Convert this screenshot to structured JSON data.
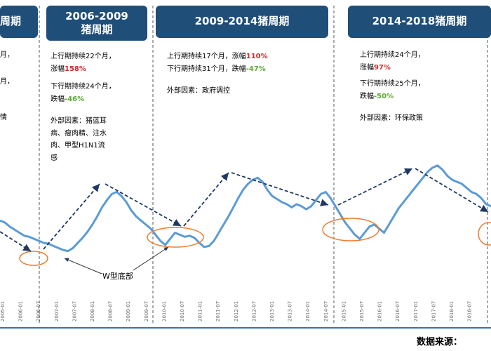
{
  "cycles": [
    {
      "title_lines": [
        "周期"
      ],
      "info": [
        "月，",
        "月，",
        "情"
      ]
    },
    {
      "title_lines": [
        "2006-2009",
        "猪周期"
      ],
      "info": [
        {
          "pre": "上行期持续22个月，",
          "val": ""
        },
        {
          "pre": "涨幅",
          "val": "158%",
          "cls": "up"
        },
        {
          "pre": "下行期持续24个月，",
          "val": ""
        },
        {
          "pre": "跌幅",
          "val": "-46%",
          "cls": "down"
        },
        {
          "pre": "外部因素：猪蓝耳",
          "val": ""
        },
        {
          "pre": "病、瘦肉精、注水",
          "val": ""
        },
        {
          "pre": "肉、甲型H1N1流",
          "val": ""
        },
        {
          "pre": "感",
          "val": ""
        }
      ]
    },
    {
      "title_lines": [
        "2009-2014猪周期"
      ],
      "info": [
        {
          "pre": "上行期持续17个月，涨幅",
          "val": "110%",
          "cls": "up"
        },
        {
          "pre": "下行期持续31个月，跌幅",
          "val": "-47%",
          "cls": "down"
        },
        {
          "pre": "外部因素：政府调控",
          "val": ""
        }
      ]
    },
    {
      "title_lines": [
        "2014-2018猪周期"
      ],
      "info": [
        {
          "pre": "上行期持续24个月，",
          "val": ""
        },
        {
          "pre": "涨幅",
          "val": "97%",
          "cls": "up"
        },
        {
          "pre": "下行期持续25个月，",
          "val": ""
        },
        {
          "pre": "跌幅",
          "val": "-50%",
          "cls": "down"
        },
        {
          "pre": "外部因素：环保政策",
          "val": ""
        }
      ]
    }
  ],
  "annotation": "W型底部",
  "source_label": "数据来源：",
  "colors": {
    "header_bg": "#1f4e79",
    "line": "#5b9bd5",
    "trend_arrow": "#1f3864",
    "circle": "#ed7d31",
    "up": "#d42a2a",
    "down": "#5aa832",
    "divider": "#555555"
  },
  "chart_data": {
    "type": "line",
    "title": "",
    "xlabel": "",
    "ylabel": "",
    "x_tick_labels": [
      "2005-01",
      "2006-01",
      "2006-07",
      "2007-01",
      "2007-07",
      "2008-01",
      "2008-07",
      "2009-01",
      "2009-07",
      "2010-01",
      "2010-07",
      "2011-01",
      "2011-07",
      "2012-01",
      "2012-07",
      "2013-01",
      "2013-07",
      "2014-01",
      "2014-07",
      "2015-01",
      "2015-07",
      "2016-01",
      "2016-07",
      "2017-01",
      "2017-07",
      "2018-01",
      "2018-07"
    ],
    "series": [
      {
        "name": "",
        "values": [
          0.42,
          0.4,
          0.36,
          0.33,
          0.3,
          0.27,
          0.26,
          0.24,
          0.22,
          0.2,
          0.19,
          0.17,
          0.15,
          0.13,
          0.12,
          0.15,
          0.2,
          0.25,
          0.31,
          0.38,
          0.46,
          0.55,
          0.62,
          0.68,
          0.7,
          0.66,
          0.6,
          0.52,
          0.46,
          0.42,
          0.38,
          0.34,
          0.28,
          0.22,
          0.18,
          0.24,
          0.3,
          0.28,
          0.26,
          0.27,
          0.25,
          0.2,
          0.16,
          0.17,
          0.22,
          0.3,
          0.38,
          0.46,
          0.55,
          0.64,
          0.72,
          0.78,
          0.82,
          0.84,
          0.8,
          0.72,
          0.66,
          0.63,
          0.6,
          0.58,
          0.55,
          0.58,
          0.56,
          0.53,
          0.56,
          0.62,
          0.68,
          0.7,
          0.64,
          0.56,
          0.48,
          0.4,
          0.34,
          0.28,
          0.24,
          0.3,
          0.36,
          0.38,
          0.34,
          0.3,
          0.38,
          0.46,
          0.54,
          0.6,
          0.66,
          0.72,
          0.78,
          0.84,
          0.9,
          0.94,
          0.96,
          0.92,
          0.86,
          0.82,
          0.8,
          0.78,
          0.74,
          0.7,
          0.68,
          0.64,
          0.58,
          0.56
        ]
      }
    ]
  }
}
